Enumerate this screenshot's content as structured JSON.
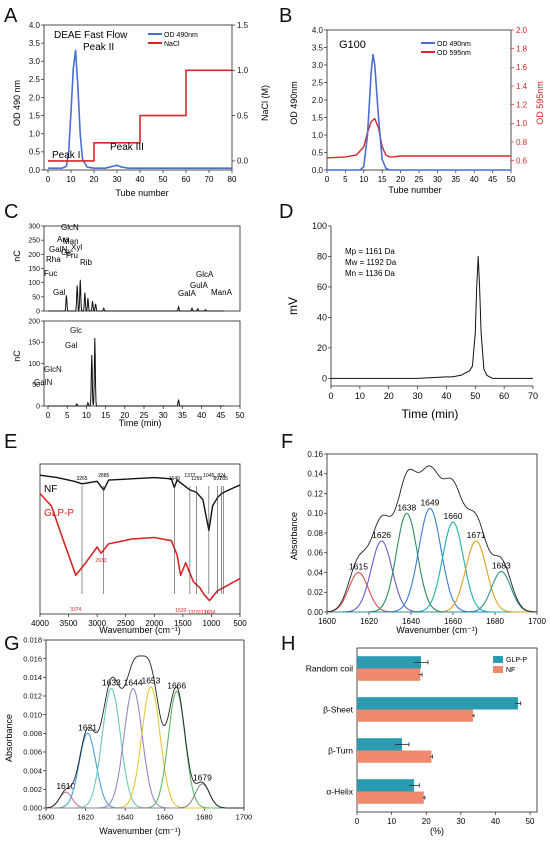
{
  "panels": {
    "A": {
      "letter": "A",
      "title": "DEAE Fast Flow",
      "xlabel": "Tube number",
      "ylabel_left": "OD 490 nm",
      "ylabel_right": "NaCl (M)",
      "legend": [
        "OD 490nm",
        "NaCl"
      ],
      "annotations": [
        "Peak I",
        "Peak II",
        "Peak III"
      ],
      "xticks": [
        "0",
        "10",
        "20",
        "30",
        "40",
        "50",
        "60",
        "70",
        "80"
      ],
      "yticks_left": [
        "0.0",
        "0.5",
        "1.0",
        "1.5",
        "2.0",
        "2.5",
        "3.0",
        "3.5",
        "4.0"
      ],
      "yticks_right": [
        "0.0",
        "0.5",
        "1.0",
        "1.5"
      ]
    },
    "B": {
      "letter": "B",
      "title": "G100",
      "xlabel": "Tube number",
      "ylabel_left": "OD 490nm",
      "ylabel_right": "OD 595nm",
      "legend": [
        "OD 490nm",
        "OD 595nm"
      ],
      "xticks": [
        "0",
        "5",
        "10",
        "15",
        "20",
        "25",
        "30",
        "35",
        "40",
        "45",
        "50"
      ],
      "yticks_left": [
        "0.0",
        "0.5",
        "1.0",
        "1.5",
        "2.0",
        "2.5",
        "3.0",
        "3.5",
        "4.0"
      ],
      "yticks_right": [
        "0.6",
        "0.8",
        "1.0",
        "1.2",
        "1.4",
        "1.6",
        "1.8",
        "2.0"
      ]
    },
    "C": {
      "letter": "C",
      "xlabel": "Time (min)",
      "ylabel": "nC",
      "xticks": [
        "0",
        "5",
        "10",
        "15",
        "20",
        "25",
        "30",
        "35",
        "40",
        "45",
        "50"
      ],
      "yticks_top": [
        "0",
        "50",
        "100",
        "150",
        "200",
        "250",
        "300"
      ],
      "yticks_bottom": [
        "0",
        "50",
        "100",
        "150",
        "200"
      ],
      "top_labels": [
        "Fuc",
        "Rha",
        "GalN",
        "Ara",
        "GlcN",
        "Gal",
        "Man",
        "Glc",
        "Xyl",
        "Fru",
        "Rib",
        "GalA",
        "GulA",
        "GlcA",
        "ManA"
      ],
      "bottom_labels": [
        "GalN",
        "GlcN",
        "Gal",
        "Glc"
      ]
    },
    "D": {
      "letter": "D",
      "xlabel": "Time (min)",
      "ylabel": "mV",
      "stats": [
        "Mp = 1161 Da",
        "Mw = 1192 Da",
        "Mn = 1136 Da"
      ],
      "xticks": [
        "0",
        "10",
        "20",
        "30",
        "40",
        "50",
        "60",
        "70"
      ],
      "yticks": [
        "0",
        "20",
        "40",
        "60",
        "80",
        "100"
      ]
    },
    "E": {
      "letter": "E",
      "xlabel": "Wavenumber (cm⁻¹)",
      "series": [
        "NF",
        "GLP-P"
      ],
      "xticks": [
        "4000",
        "3500",
        "3000",
        "2500",
        "2000",
        "1500",
        "1000",
        "500"
      ],
      "nf_peaks": [
        "3265",
        "2885",
        "1649",
        "1377",
        "1259",
        "1045",
        "891",
        "824",
        "785"
      ],
      "glp_peaks": [
        "3374",
        "2933",
        "1539",
        "1315",
        "1131",
        "1034"
      ]
    },
    "F": {
      "letter": "F",
      "xlabel": "Wavenumber (cm⁻¹)",
      "ylabel": "Absorbance",
      "xticks": [
        "1600",
        "1620",
        "1640",
        "1660",
        "1680",
        "1700"
      ],
      "yticks": [
        "0.00",
        "0.02",
        "0.04",
        "0.06",
        "0.08",
        "0.10",
        "0.12",
        "0.14",
        "0.16"
      ]
    },
    "G": {
      "letter": "G",
      "xlabel": "Wavenumber (cm⁻¹)",
      "ylabel": "Absorbance",
      "xticks": [
        "1600",
        "1620",
        "1640",
        "1660",
        "1680",
        "1700"
      ],
      "yticks": [
        "0.000",
        "0.002",
        "0.004",
        "0.006",
        "0.008",
        "0.010",
        "0.012",
        "0.014",
        "0.016",
        "0.018"
      ]
    },
    "H": {
      "letter": "H",
      "xlabel": "(%)",
      "xticks": [
        "0",
        "10",
        "20",
        "30",
        "40",
        "50"
      ]
    }
  },
  "colors": {
    "blue": "#4a6fd1",
    "red": "#d62728",
    "teal": "#2a9bb0",
    "salmon": "#f08a6e"
  },
  "chart_data": [
    {
      "panel": "A",
      "type": "line",
      "title": "DEAE Fast Flow",
      "xlabel": "Tube number",
      "ylabel": "OD 490 nm",
      "xlim": [
        0,
        80
      ],
      "ylim": [
        0,
        4.0
      ],
      "y2lim": [
        -0.1,
        1.5
      ],
      "series": [
        {
          "name": "OD 490nm",
          "axis": "left",
          "x": [
            0,
            6,
            8,
            9,
            10,
            11,
            12,
            13,
            14,
            15,
            17,
            20,
            25,
            28,
            30,
            32,
            35,
            45,
            60,
            80
          ],
          "y": [
            0.05,
            0.05,
            0.1,
            0.5,
            1.6,
            2.8,
            3.3,
            2.3,
            1.0,
            0.3,
            0.08,
            0.05,
            0.05,
            0.1,
            0.13,
            0.08,
            0.05,
            0.05,
            0.05,
            0.05
          ]
        },
        {
          "name": "NaCl",
          "axis": "right",
          "x": [
            0,
            20,
            20,
            40,
            40,
            60,
            60,
            80
          ],
          "y": [
            0,
            0,
            0.2,
            0.2,
            0.5,
            0.5,
            1.0,
            1.0
          ]
        }
      ],
      "annotations": [
        {
          "text": "Peak I",
          "x": 2,
          "y": 0.25
        },
        {
          "text": "Peak II",
          "x": 11,
          "y": 3.4
        },
        {
          "text": "Peak III",
          "x": 30,
          "y": 0.4
        }
      ]
    },
    {
      "panel": "B",
      "type": "line",
      "title": "G100",
      "xlabel": "Tube number",
      "ylabel": "OD 490nm",
      "xlim": [
        0,
        50
      ],
      "ylim": [
        0,
        4.0
      ],
      "y2lim": [
        0.5,
        2.0
      ],
      "series": [
        {
          "name": "OD 490nm",
          "axis": "left",
          "x": [
            0,
            9,
            10,
            11,
            12,
            12.5,
            13,
            14,
            15,
            16,
            17,
            20,
            30,
            50
          ],
          "y": [
            0.0,
            0.0,
            0.1,
            1.0,
            2.8,
            3.3,
            3.0,
            1.5,
            0.3,
            0.05,
            0.0,
            0.0,
            0.0,
            0.0
          ]
        },
        {
          "name": "OD 595nm",
          "axis": "right",
          "x": [
            0,
            5,
            8,
            10,
            11,
            12,
            13,
            14,
            15,
            16,
            17,
            18,
            20,
            30,
            40,
            50
          ],
          "y": [
            0.63,
            0.64,
            0.66,
            0.75,
            0.9,
            1.02,
            1.05,
            0.95,
            0.75,
            0.66,
            0.64,
            0.64,
            0.65,
            0.65,
            0.65,
            0.65
          ]
        }
      ]
    },
    {
      "panel": "C",
      "type": "line",
      "xlabel": "Time (min)",
      "ylabel": "nC",
      "xlim": [
        0,
        50
      ],
      "subplots": [
        {
          "ylim": [
            0,
            300
          ],
          "peaks": [
            {
              "x": 4.8,
              "y": 55
            },
            {
              "x": 7.6,
              "y": 90
            },
            {
              "x": 8.4,
              "y": 110
            },
            {
              "x": 9.6,
              "y": 65
            },
            {
              "x": 10.4,
              "y": 45
            },
            {
              "x": 11.6,
              "y": 35
            },
            {
              "x": 12.4,
              "y": 25
            },
            {
              "x": 14.5,
              "y": 10
            },
            {
              "x": 34,
              "y": 15
            },
            {
              "x": 37.5,
              "y": 10
            },
            {
              "x": 39,
              "y": 8
            },
            {
              "x": 41,
              "y": 5
            }
          ]
        },
        {
          "ylim": [
            0,
            200
          ],
          "peaks": [
            {
              "x": 7.5,
              "y": 5
            },
            {
              "x": 10.4,
              "y": 8
            },
            {
              "x": 11.4,
              "y": 120
            },
            {
              "x": 12.2,
              "y": 160
            },
            {
              "x": 34,
              "y": 15
            }
          ]
        }
      ]
    },
    {
      "panel": "D",
      "type": "line",
      "xlabel": "Time (min)",
      "ylabel": "mV",
      "xlim": [
        0,
        70
      ],
      "ylim": [
        0,
        100
      ],
      "series": [
        {
          "name": "",
          "x": [
            0,
            10,
            20,
            30,
            35,
            40,
            42,
            45,
            47,
            48,
            49,
            50,
            50.5,
            51,
            51.5,
            52,
            53,
            54,
            56,
            60,
            70
          ],
          "y": [
            0,
            0,
            0,
            0,
            0.5,
            1,
            1,
            2,
            4,
            5,
            8,
            30,
            60,
            80,
            60,
            30,
            6,
            2,
            0,
            0,
            0
          ]
        }
      ]
    },
    {
      "panel": "E",
      "type": "line",
      "xlabel": "Wavenumber (cm⁻¹)",
      "xlim": [
        4000,
        500
      ],
      "series": [
        {
          "name": "NF",
          "x": [
            4000,
            3700,
            3400,
            3265,
            3000,
            2885,
            2800,
            2000,
            1700,
            1649,
            1600,
            1377,
            1259,
            1150,
            1045,
            980,
            891,
            824,
            785,
            600,
            500
          ],
          "y": [
            1.0,
            0.98,
            0.95,
            0.93,
            0.95,
            0.88,
            0.96,
            0.98,
            0.97,
            0.9,
            0.96,
            0.88,
            0.86,
            0.8,
            0.55,
            0.75,
            0.82,
            0.85,
            0.86,
            0.9,
            0.92
          ]
        },
        {
          "name": "GLP-P",
          "x": [
            4000,
            3800,
            3600,
            3374,
            3200,
            3000,
            2933,
            2800,
            2400,
            2000,
            1700,
            1600,
            1539,
            1450,
            1315,
            1200,
            1131,
            1034,
            900,
            700,
            500
          ],
          "y": [
            0.74,
            0.66,
            0.45,
            0.22,
            0.3,
            0.4,
            0.36,
            0.42,
            0.45,
            0.46,
            0.44,
            0.35,
            0.22,
            0.3,
            0.18,
            0.14,
            0.1,
            0.06,
            0.12,
            0.16,
            0.2
          ]
        }
      ]
    },
    {
      "panel": "F",
      "type": "line",
      "xlabel": "Wavenumber (cm⁻¹)",
      "ylabel": "Absorbance",
      "xlim": [
        1600,
        1700
      ],
      "ylim": [
        0,
        0.16
      ],
      "envelope_peak": 0.148,
      "components": [
        {
          "center": 1615,
          "height": 0.04,
          "width": 6.5,
          "color": "#e05050"
        },
        {
          "center": 1626,
          "height": 0.072,
          "width": 7,
          "color": "#6a5acd"
        },
        {
          "center": 1638,
          "height": 0.1,
          "width": 7,
          "color": "#2e8b57"
        },
        {
          "center": 1649,
          "height": 0.105,
          "width": 7.5,
          "color": "#3a7bd5"
        },
        {
          "center": 1660,
          "height": 0.091,
          "width": 7,
          "color": "#20b2aa"
        },
        {
          "center": 1671,
          "height": 0.072,
          "width": 7,
          "color": "#e0a020"
        },
        {
          "center": 1683,
          "height": 0.041,
          "width": 6.5,
          "color": "#2f8f8f"
        }
      ]
    },
    {
      "panel": "G",
      "type": "line",
      "xlabel": "Wavenumber (cm⁻¹)",
      "ylabel": "Absorbance",
      "xlim": [
        1600,
        1700
      ],
      "ylim": [
        0,
        0.018
      ],
      "envelope_peak": 0.0163,
      "components": [
        {
          "center": 1610,
          "height": 0.0017,
          "width": 4.5,
          "color": "#d070a0"
        },
        {
          "center": 1621,
          "height": 0.008,
          "width": 6,
          "color": "#4aa0d8"
        },
        {
          "center": 1633,
          "height": 0.0128,
          "width": 6.5,
          "color": "#6bc8b8"
        },
        {
          "center": 1644,
          "height": 0.0128,
          "width": 6.5,
          "color": "#9a86c8"
        },
        {
          "center": 1653,
          "height": 0.013,
          "width": 6.5,
          "color": "#e4c830"
        },
        {
          "center": 1666,
          "height": 0.0125,
          "width": 6,
          "color": "#5fb86a"
        },
        {
          "center": 1679,
          "height": 0.0026,
          "width": 5,
          "color": "#888888"
        }
      ]
    },
    {
      "panel": "H",
      "type": "bar",
      "orientation": "horizontal",
      "xlabel": "(%)",
      "xlim": [
        0,
        52
      ],
      "categories": [
        "Random coil",
        "β-Sheet",
        "β-Turn",
        "α-Helix"
      ],
      "series": [
        {
          "name": "GLP-P",
          "values": [
            18.5,
            46.5,
            13.0,
            16.5
          ],
          "errors": [
            2.0,
            0.8,
            2.0,
            1.5
          ],
          "color": "#2a9bb0"
        },
        {
          "name": "NF",
          "values": [
            18.3,
            33.5,
            21.5,
            19.3
          ],
          "errors": [
            0.5,
            0.3,
            0.3,
            0.3
          ],
          "color": "#f08a6e"
        }
      ]
    }
  ]
}
